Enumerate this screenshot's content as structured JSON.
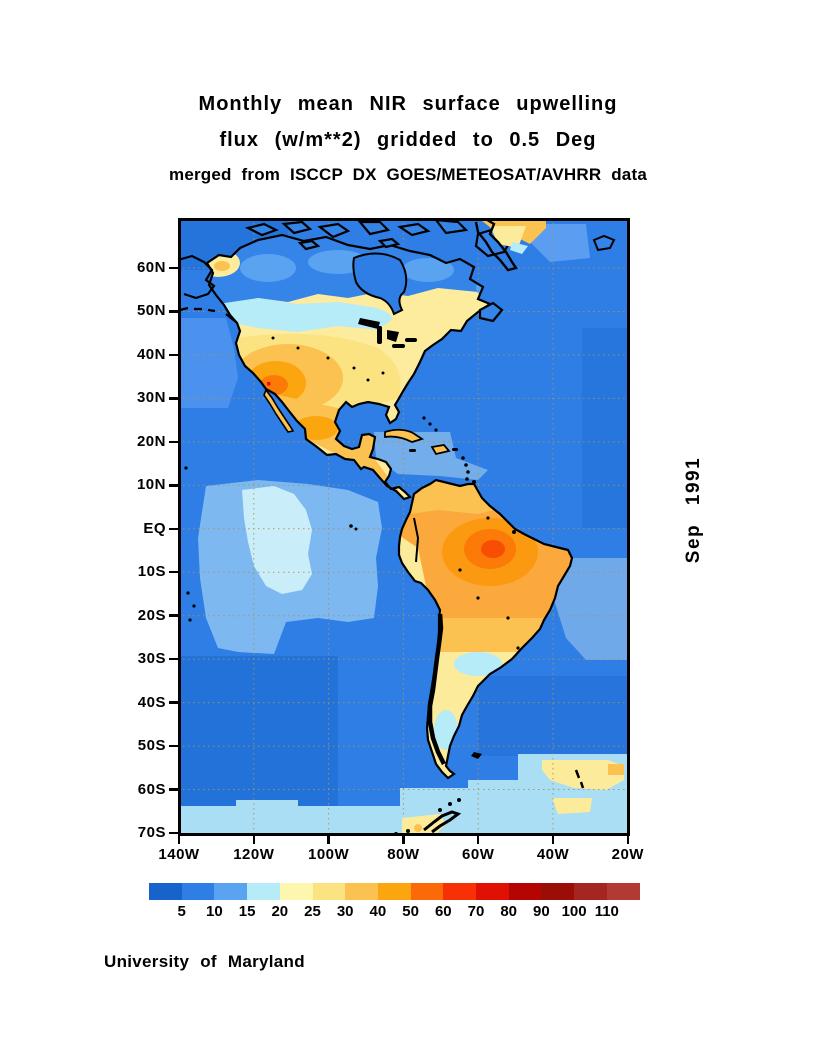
{
  "title": {
    "line1": "Monthly mean NIR surface upwelling",
    "line2": "flux (w/m**2) gridded to 0.5 Deg",
    "line3": "merged from ISCCP DX GOES/METEOSAT/AVHRR data"
  },
  "side_label": "Sep 1991",
  "credit": "University of Maryland",
  "map": {
    "lat_ticks": [
      "60N",
      "50N",
      "40N",
      "30N",
      "20N",
      "10N",
      "EQ",
      "10S",
      "20S",
      "30S",
      "40S",
      "50S",
      "60S",
      "70S"
    ],
    "lon_ticks": [
      "140W",
      "120W",
      "100W",
      "80W",
      "60W",
      "40W",
      "20W"
    ]
  },
  "colorbar": {
    "values": [
      "5",
      "10",
      "15",
      "20",
      "25",
      "30",
      "40",
      "50",
      "60",
      "70",
      "80",
      "90",
      "100",
      "110"
    ],
    "colors": [
      "#1663cb",
      "#2e7ee6",
      "#5aa3f1",
      "#b6ebf8",
      "#fdf6ad",
      "#fce382",
      "#fcc251",
      "#fba60f",
      "#fb6909",
      "#f73005",
      "#e01102",
      "#b40502",
      "#9b0e07",
      "#a52621",
      "#b23a32"
    ]
  },
  "chart_data": {
    "type": "heatmap",
    "title": "Monthly mean NIR surface upwelling flux (w/m**2) gridded to 0.5 Deg",
    "subtitle": "merged from ISCCP DX GOES/METEOSAT/AVHRR data",
    "date": "Sep 1991",
    "units": "w/m**2",
    "projection": "lat/lon grid, Americas sector",
    "lon_range": [
      "140W",
      "20W"
    ],
    "lat_range": [
      "70S",
      "72N"
    ],
    "scale_values": [
      5,
      10,
      15,
      20,
      25,
      30,
      40,
      50,
      60,
      70,
      80,
      90,
      100,
      110
    ],
    "scale_colors": [
      "#1663cb",
      "#2e7ee6",
      "#5aa3f1",
      "#b6ebf8",
      "#fdf6ad",
      "#fce382",
      "#fcc251",
      "#fba60f",
      "#fb6909",
      "#f73005",
      "#e01102",
      "#b40502",
      "#9b0e07",
      "#a52621",
      "#b23a32"
    ],
    "gridlines": "dashed every 10 deg latitude / 20 deg longitude",
    "notable_features": [
      {
        "region": "open tropical and midlatitude oceans",
        "flux": "5-10"
      },
      {
        "region": "equatorial SE Pacific patch (~90-110W, EQ-15S)",
        "flux": "15-20"
      },
      {
        "region": "central Canada band (~45-55N)",
        "flux": "15-20"
      },
      {
        "region": "western/southwestern United States",
        "flux": "40-60"
      },
      {
        "region": "Mexico and Central America",
        "flux": "30-50"
      },
      {
        "region": "northern South America / Amazon basin",
        "flux": "40-50"
      },
      {
        "region": "eastern Brazil hotspot (~50-58W, 2-8S)",
        "flux": "60-70"
      },
      {
        "region": "southern South America (Patagonia)",
        "flux": "15-25"
      },
      {
        "region": "southern Greenland tip",
        "flux": "25-40"
      },
      {
        "region": "South Atlantic patch (~35W, 55S)",
        "flux": "20-30"
      },
      {
        "region": "Southern Ocean south of ~62S",
        "flux": "15-20"
      }
    ]
  }
}
